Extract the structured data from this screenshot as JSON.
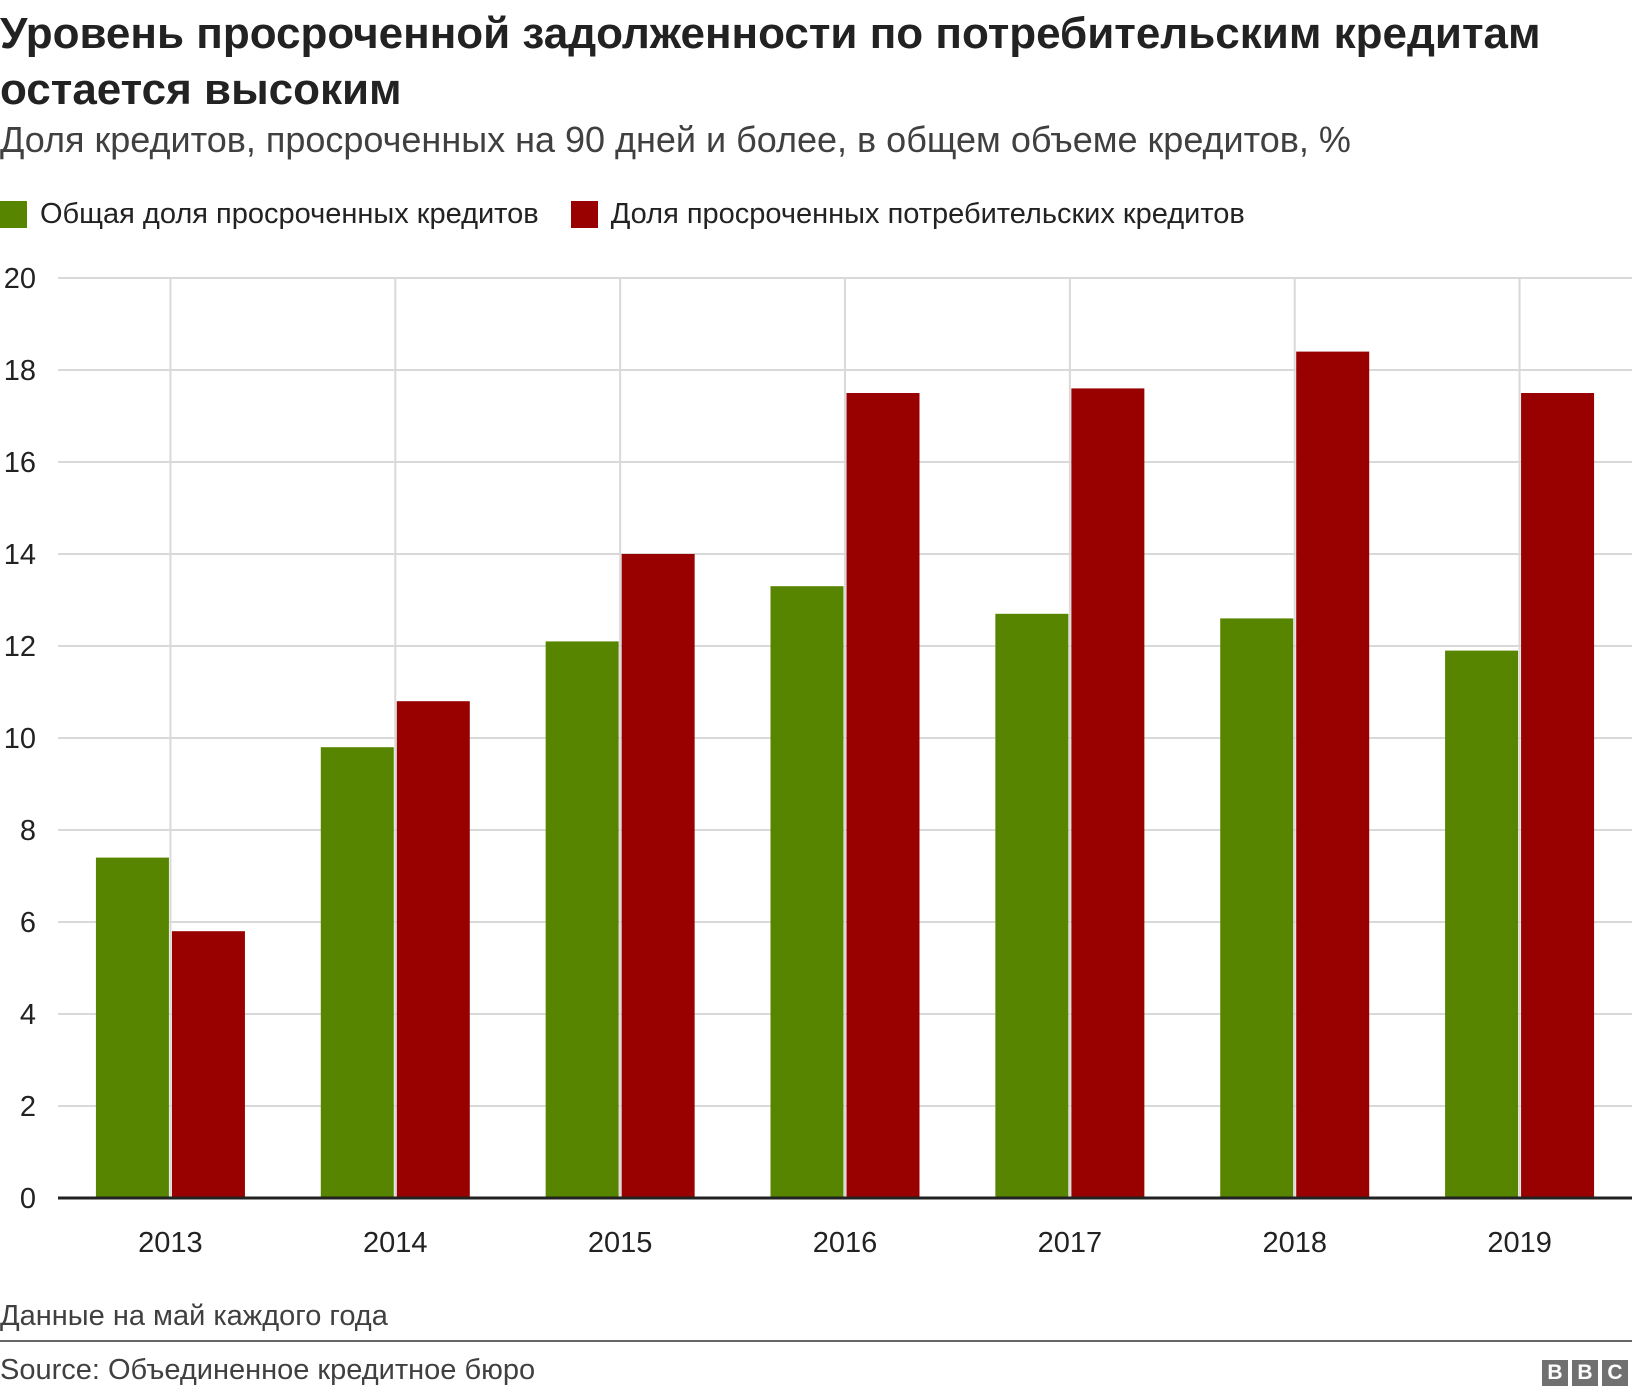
{
  "header": {
    "title": "Уровень просроченной задолженности по потребительским кредитам остается высоким",
    "subtitle": "Доля кредитов, просроченных на 90 дней и более, в общем объеме кредитов, %"
  },
  "footer": {
    "note": "Данные на май каждого года",
    "source": "Source: Объединенное кредитное бюро",
    "logo_letters": [
      "B",
      "B",
      "C"
    ]
  },
  "colors": {
    "series_total": "#588500",
    "series_consumer": "#990000",
    "grid": "#d9d9d9",
    "axis": "#222222",
    "text": "#222222"
  },
  "chart_data": {
    "type": "bar",
    "title": "Уровень просроченной задолженности по потребительским кредитам остается высоким",
    "subtitle": "Доля кредитов, просроченных на 90 дней и более, в общем объеме кредитов, %",
    "categories": [
      "2013",
      "2014",
      "2015",
      "2016",
      "2017",
      "2018",
      "2019"
    ],
    "series": [
      {
        "name": "Общая доля просроченных кредитов",
        "color": "#588500",
        "values": [
          7.4,
          9.8,
          12.1,
          13.3,
          12.7,
          12.6,
          11.9
        ]
      },
      {
        "name": "Доля просроченных потребительских кредитов",
        "color": "#990000",
        "values": [
          5.8,
          10.8,
          14.0,
          17.5,
          17.6,
          18.4,
          17.5
        ]
      }
    ],
    "ylim": [
      0,
      20
    ],
    "yticks": [
      0,
      2,
      4,
      6,
      8,
      10,
      12,
      14,
      16,
      18,
      20
    ],
    "grid": true,
    "legend_position": "top-left"
  }
}
